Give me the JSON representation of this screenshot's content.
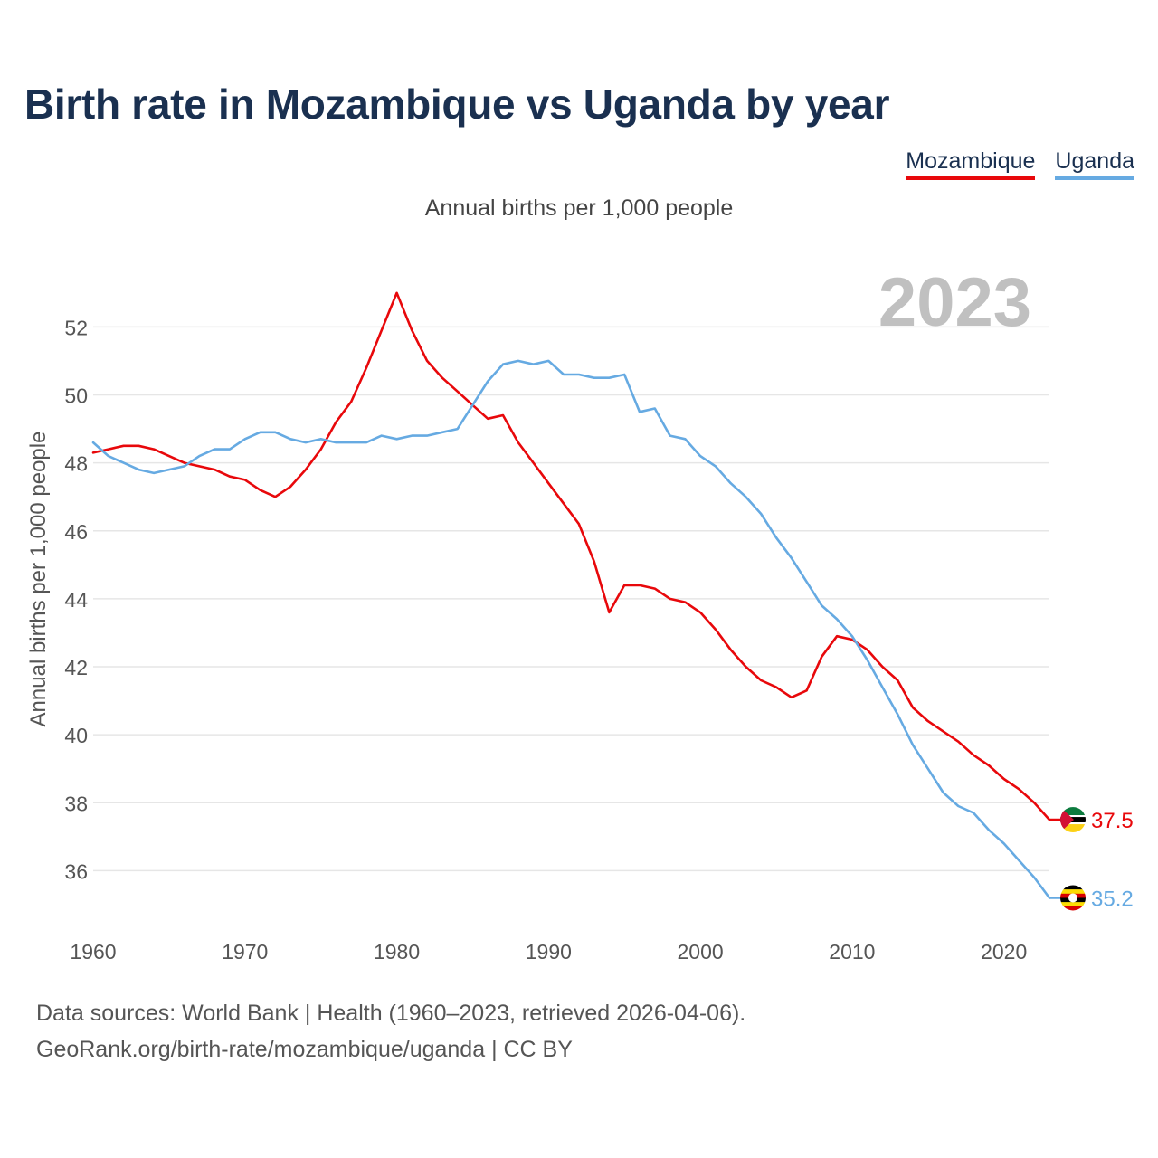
{
  "title": "Birth rate in Mozambique vs Uganda by year",
  "legend": {
    "mozambique": "Mozambique",
    "uganda": "Uganda"
  },
  "subtitle": "Annual births per 1,000 people",
  "year_label": "2023",
  "colors": {
    "mozambique": "#e8080b",
    "uganda": "#66aae2",
    "title": "#1a3050",
    "grid": "#e6e6e6",
    "axis_text": "#555555",
    "year_watermark": "#c0c0c0"
  },
  "footer": {
    "source": "Data sources: World Bank | Health (1960–2023, retrieved 2026-04-06).",
    "credit": "GeoRank.org/birth-rate/mozambique/uganda | CC BY"
  },
  "chart_data": {
    "type": "line",
    "title": "Birth rate in Mozambique vs Uganda by year",
    "ylabel": "Annual births per 1,000 people",
    "xlabel": "",
    "xlim": [
      1960,
      2023
    ],
    "ylim": [
      34.6,
      53.9
    ],
    "x_ticks": [
      "1960",
      "1970",
      "1980",
      "1990",
      "2000",
      "2010",
      "2020"
    ],
    "y_ticks": [
      "36",
      "38",
      "40",
      "42",
      "44",
      "46",
      "48",
      "50",
      "52"
    ],
    "grid": true,
    "legend_position": "top-right",
    "x": [
      1960,
      1961,
      1962,
      1963,
      1964,
      1965,
      1966,
      1967,
      1968,
      1969,
      1970,
      1971,
      1972,
      1973,
      1974,
      1975,
      1976,
      1977,
      1978,
      1979,
      1980,
      1981,
      1982,
      1983,
      1984,
      1985,
      1986,
      1987,
      1988,
      1989,
      1990,
      1991,
      1992,
      1993,
      1994,
      1995,
      1996,
      1997,
      1998,
      1999,
      2000,
      2001,
      2002,
      2003,
      2004,
      2005,
      2006,
      2007,
      2008,
      2009,
      2010,
      2011,
      2012,
      2013,
      2014,
      2015,
      2016,
      2017,
      2018,
      2019,
      2020,
      2021,
      2022,
      2023
    ],
    "series": [
      {
        "name": "Mozambique",
        "color": "#e8080b",
        "end_label": "37.5",
        "values": [
          48.3,
          48.4,
          48.5,
          48.5,
          48.4,
          48.2,
          48.0,
          47.9,
          47.8,
          47.6,
          47.5,
          47.2,
          47.0,
          47.3,
          47.8,
          48.4,
          49.2,
          49.8,
          50.8,
          51.9,
          53.0,
          51.9,
          51.0,
          50.5,
          50.1,
          49.7,
          49.3,
          49.4,
          48.6,
          48.0,
          47.4,
          46.8,
          46.2,
          45.1,
          43.6,
          44.4,
          44.4,
          44.3,
          44.0,
          43.9,
          43.6,
          43.1,
          42.5,
          42.0,
          41.6,
          41.4,
          41.1,
          41.3,
          42.3,
          42.9,
          42.8,
          42.5,
          42.0,
          41.6,
          40.8,
          40.4,
          40.1,
          39.8,
          39.4,
          39.1,
          38.7,
          38.4,
          38.0,
          37.5
        ]
      },
      {
        "name": "Uganda",
        "color": "#66aae2",
        "end_label": "35.2",
        "values": [
          48.6,
          48.2,
          48.0,
          47.8,
          47.7,
          47.8,
          47.9,
          48.2,
          48.4,
          48.4,
          48.7,
          48.9,
          48.9,
          48.7,
          48.6,
          48.7,
          48.6,
          48.6,
          48.6,
          48.8,
          48.7,
          48.8,
          48.8,
          48.9,
          49.0,
          49.7,
          50.4,
          50.9,
          51.0,
          50.9,
          51.0,
          50.6,
          50.6,
          50.5,
          50.5,
          50.6,
          49.5,
          49.6,
          48.8,
          48.7,
          48.2,
          47.9,
          47.4,
          47.0,
          46.5,
          45.8,
          45.2,
          44.5,
          43.8,
          43.4,
          42.9,
          42.2,
          41.4,
          40.6,
          39.7,
          39.0,
          38.3,
          37.9,
          37.7,
          37.2,
          36.8,
          36.3,
          35.8,
          35.2
        ]
      }
    ]
  }
}
